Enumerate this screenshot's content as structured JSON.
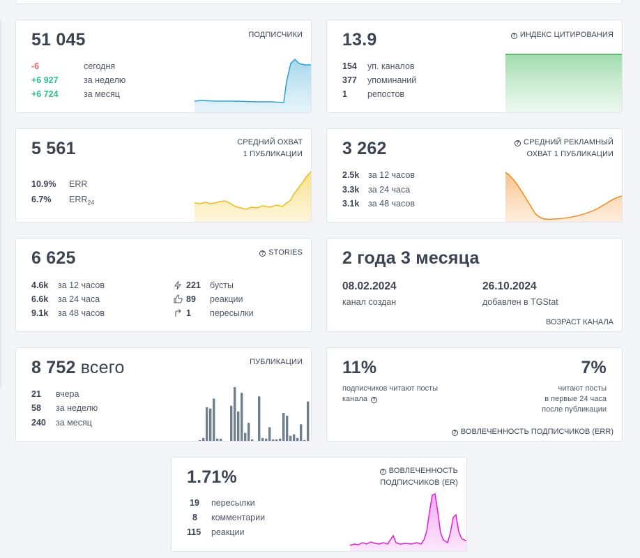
{
  "subscribers": {
    "value": "51 045",
    "title": "ПОДПИСЧИКИ",
    "rows": [
      {
        "value": "-6",
        "label": "сегодня"
      },
      {
        "value": "+6 927",
        "label": "за неделю"
      },
      {
        "value": "+6 724",
        "label": "за месяц"
      }
    ],
    "color": "#3aa3d0"
  },
  "citation": {
    "value": "13.9",
    "title": "ИНДЕКС ЦИТИРОВАНИЯ",
    "rows": [
      {
        "value": "154",
        "label": "уп. каналов"
      },
      {
        "value": "377",
        "label": "упоминаний"
      },
      {
        "value": "1",
        "label": "репостов"
      }
    ],
    "color": "#43b35a"
  },
  "avg_reach": {
    "value": "5 561",
    "title_line1": "СРЕДНИЙ ОХВАТ",
    "title_line2": "1 ПУБЛИКАЦИИ",
    "rows": [
      {
        "value": "10.9%",
        "label": "ERR"
      },
      {
        "value": "6.7%",
        "label": "ERR",
        "sub": "24"
      }
    ],
    "color": "#f2c234"
  },
  "ad_reach": {
    "value": "3 262",
    "title_line1": "СРЕДНИЙ РЕКЛАМНЫЙ",
    "title_line2": "ОХВАТ 1 ПУБЛИКАЦИИ",
    "rows": [
      {
        "value": "2.5k",
        "label": "за 12 часов"
      },
      {
        "value": "3.3k",
        "label": "за 24 часа"
      },
      {
        "value": "3.1k",
        "label": "за 48 часов"
      }
    ],
    "color": "#f0952a"
  },
  "stories": {
    "value": "6 625",
    "title": "STORIES",
    "rows": [
      {
        "value": "4.6k",
        "label": "за 12 часов"
      },
      {
        "value": "6.6k",
        "label": "за 24 часа"
      },
      {
        "value": "9.1k",
        "label": "за 48 часов"
      }
    ],
    "extras": [
      {
        "icon": "lightning-icon",
        "value": "221",
        "label": "бусты"
      },
      {
        "icon": "thumbs-up-icon",
        "value": "89",
        "label": "реакции"
      },
      {
        "icon": "share-arrow-icon",
        "value": "1",
        "label": "пересылки"
      }
    ]
  },
  "age": {
    "value": "2 года 3 месяца",
    "created_date": "08.02.2024",
    "created_label": "канал создан",
    "added_date": "26.10.2024",
    "added_label": "добавлен в TGStat",
    "footer": "ВОЗРАСТ КАНАЛА"
  },
  "publications": {
    "value": "8 752",
    "value_suffix": "всего",
    "title": "ПУБЛИКАЦИИ",
    "rows": [
      {
        "value": "21",
        "label": "вчера"
      },
      {
        "value": "58",
        "label": "за неделю"
      },
      {
        "value": "240",
        "label": "за месяц"
      }
    ],
    "color": "#6f7f8f"
  },
  "err": {
    "left_value": "11%",
    "left_line1": "подписчиков читают посты",
    "left_line2": "канала",
    "right_value": "7%",
    "right_line1": "читают посты",
    "right_line2": "в первые 24 часа",
    "right_line3": "после публикации",
    "footer": "ВОВЛЕЧЕННОСТЬ ПОДПИСЧИКОВ (ERR)"
  },
  "er": {
    "value": "1.71%",
    "title_line1": "ВОВЛЕЧЕННОСТЬ",
    "title_line2": "ПОДПИСЧИКОВ (ER)",
    "rows": [
      {
        "value": "19",
        "label": "пересылки"
      },
      {
        "value": "8",
        "label": "комментарии"
      },
      {
        "value": "115",
        "label": "реакции"
      }
    ],
    "color": "#e020d0"
  }
}
